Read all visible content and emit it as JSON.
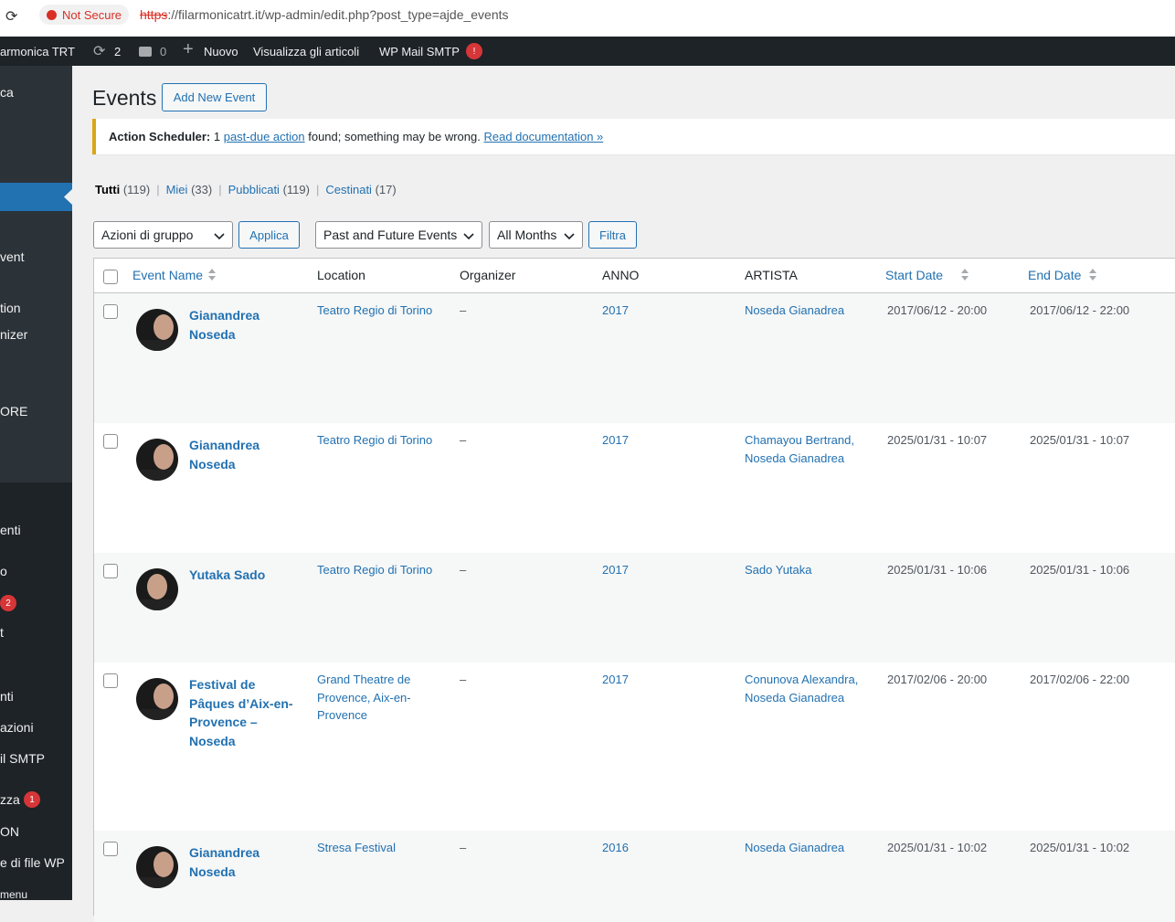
{
  "browser": {
    "not_secure": "Not Secure",
    "url_scheme": "https",
    "url_rest": "://filarmonicatrt.it/wp-admin/edit.php?post_type=ajde_events"
  },
  "admin_bar": {
    "site": "armonica TRT",
    "updates": "2",
    "comments": "0",
    "new": "Nuovo",
    "view": "Visualizza gli articoli",
    "smtp": "WP Mail SMTP",
    "smtp_badge": "!"
  },
  "sidebar": {
    "items": [
      {
        "label": "ca"
      },
      {
        "label": "vent"
      },
      {
        "label": "tion"
      },
      {
        "label": "nizer"
      },
      {
        "label": "ORE"
      },
      {
        "label": "enti"
      },
      {
        "label": "o"
      },
      {
        "badge": "2"
      },
      {
        "label": "t"
      },
      {
        "label": "nti"
      },
      {
        "label": "azioni"
      },
      {
        "label": "il SMTP"
      },
      {
        "label": "zza",
        "badge": "1"
      },
      {
        "label": "ON"
      },
      {
        "label": "e di file WP"
      },
      {
        "label": "menu"
      }
    ]
  },
  "header": {
    "title": "Events",
    "add_new": "Add New Event"
  },
  "notice": {
    "parts": [
      {
        "kind": "strong",
        "text": "Action Scheduler:"
      },
      {
        "kind": "text",
        "text": " 1 "
      },
      {
        "kind": "link",
        "text": "past-due action"
      },
      {
        "kind": "text",
        "text": " found; something may be wrong. "
      },
      {
        "kind": "link",
        "text": "Read documentation »"
      }
    ]
  },
  "views": [
    {
      "label": "Tutti",
      "count": "(119)"
    },
    {
      "label": "Miei",
      "count": "(33)"
    },
    {
      "label": "Pubblicati",
      "count": "(119)"
    },
    {
      "label": "Cestinati",
      "count": "(17)"
    }
  ],
  "filters": {
    "bulk": "Azioni di gruppo",
    "apply": "Applica",
    "events": "Past and Future Events",
    "months": "All Months",
    "filter": "Filtra"
  },
  "table": {
    "columns": [
      "Event Name",
      "Location",
      "Organizer",
      "ANNO",
      "ARTISTA",
      "Start Date",
      "End Date"
    ],
    "rows": [
      [
        "Gianandrea Noseda",
        "Teatro Regio di Torino",
        "–",
        "2017",
        "Noseda Gianadrea",
        "2017/06/12 - 20:00",
        "2017/06/12 - 22:00"
      ],
      [
        "Gianandrea Noseda",
        "Teatro Regio di Torino",
        "–",
        "2017",
        "Chamayou Bertrand, Noseda Gianadrea",
        "2025/01/31 - 10:07",
        "2025/01/31 - 10:07"
      ],
      [
        "Yutaka Sado",
        "Teatro Regio di Torino",
        "–",
        "2017",
        "Sado Yutaka",
        "2025/01/31 - 10:06",
        "2025/01/31 - 10:06"
      ],
      [
        "Festival de Pâques d’Aix-en-Provence – Noseda",
        "Grand Theatre de Provence, Aix-en-Provence",
        "–",
        "2017",
        "Conunova Alexandra, Noseda Gianadrea",
        "2017/02/06 - 20:00",
        "2017/02/06 - 22:00"
      ],
      [
        "Gianandrea Noseda",
        "Stresa Festival",
        "–",
        "2016",
        "Noseda Gianadrea",
        "2025/01/31 - 10:02",
        "2025/01/31 - 10:02"
      ]
    ]
  }
}
